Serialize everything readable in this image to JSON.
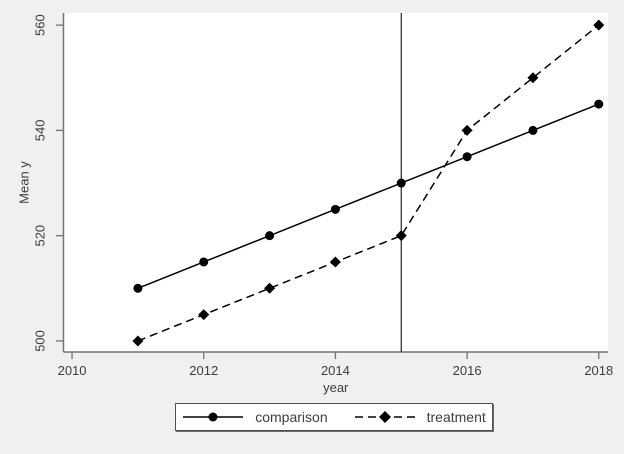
{
  "chart_data": {
    "type": "line",
    "title": "",
    "xlabel": "year",
    "ylabel": "Mean y",
    "x": [
      2011,
      2012,
      2013,
      2014,
      2015,
      2016,
      2017,
      2018
    ],
    "series": [
      {
        "name": "comparison",
        "marker": "circle",
        "line_style": "solid",
        "values": [
          510,
          515,
          520,
          525,
          530,
          535,
          540,
          545
        ]
      },
      {
        "name": "treatment",
        "marker": "diamond",
        "line_style": "dashed",
        "values": [
          500,
          505,
          510,
          515,
          520,
          540,
          550,
          560
        ]
      }
    ],
    "xticks": [
      2010,
      2012,
      2014,
      2016,
      2018
    ],
    "yticks": [
      500,
      520,
      540,
      560
    ],
    "xlim": [
      2009.87,
      2018.14
    ],
    "ylim": [
      497.9,
      562.3
    ],
    "vline_x": 2015,
    "grid": false,
    "legend_position": "bottom-center",
    "colors": {
      "series": "#000000",
      "axis": "#737373",
      "text": "#3d3d3d",
      "background": "#f0f0f0",
      "plot_background": "#ffffff",
      "reference_line": "#262626",
      "legend_border": "#4d4d4d"
    }
  }
}
